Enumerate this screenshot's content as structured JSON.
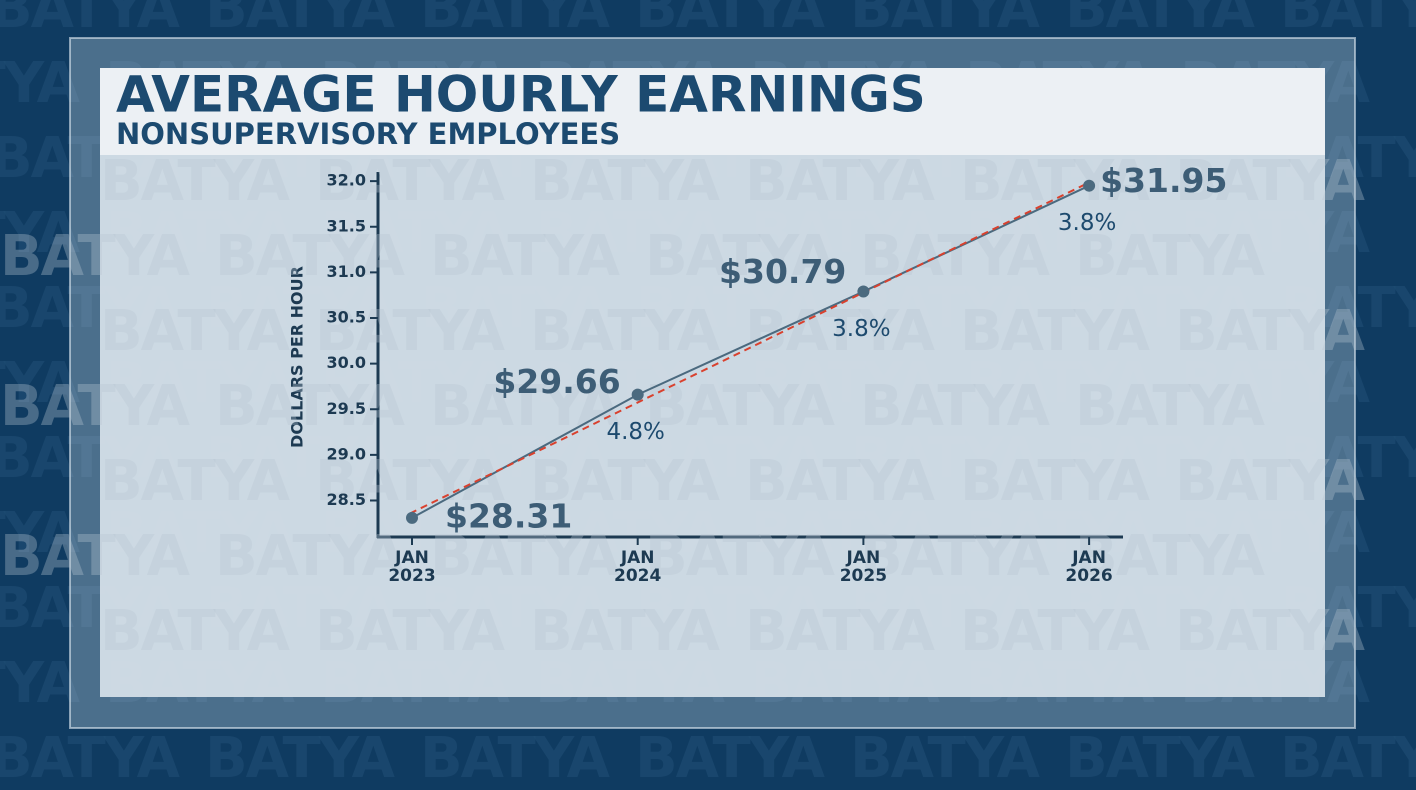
{
  "chart_data": {
    "type": "line",
    "title": "AVERAGE HOURLY EARNINGS",
    "subtitle": "NONSUPERVISORY EMPLOYEES",
    "watermark": "BATYA",
    "y_label": "DOLLARS PER HOUR",
    "categories": [
      "JAN 2023",
      "JAN 2024",
      "JAN 2025",
      "JAN 2026"
    ],
    "values": [
      28.31,
      29.66,
      30.79,
      31.95
    ],
    "value_labels": [
      "$28.31",
      "$29.66",
      "$30.79",
      "$31.95"
    ],
    "annotations": [
      "4.8%",
      "3.8%",
      "3.8%"
    ],
    "color": "#4b6a7f",
    "trendline": true,
    "trend_color": "#d9412e",
    "ylim": [
      28.1,
      32.1
    ],
    "yticks": [
      28.5,
      {
        "value": 29,
        "label": "29.0"
      },
      29.5,
      {
        "value": 30,
        "label": "30.0"
      },
      30.5,
      {
        "value": 31,
        "label": "31.0"
      },
      31.5,
      {
        "value": 32,
        "label": "32.0"
      }
    ]
  }
}
